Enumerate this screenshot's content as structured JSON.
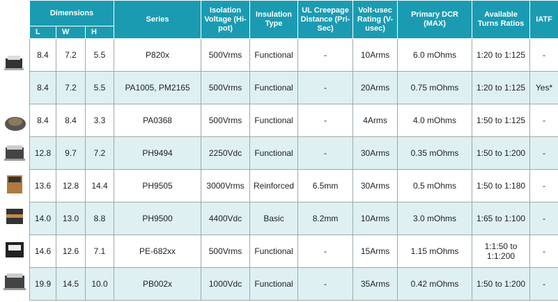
{
  "table": {
    "header": {
      "dimensions": "Dimensions",
      "dims": [
        "L",
        "W",
        "H"
      ],
      "columns": [
        "Series",
        "Isolation Voltage (Hi-pot)",
        "Insulation Type",
        "UL Creepage Distance (Pri-Sec)",
        "Volt-usec Rating (V-usec)",
        "Primary DCR (MAX)",
        "Available Turns Ratios",
        "IATF"
      ]
    },
    "rows": [
      [
        "8.4",
        "7.2",
        "5.5",
        "P820x",
        "500Vrms",
        "Functional",
        "-",
        "10Arms",
        "6.0 mOhms",
        "1:20 to 1:125",
        "-"
      ],
      [
        "8.4",
        "7.2",
        "5.5",
        "PA1005, PM2165",
        "500Vrms",
        "Functional",
        "-",
        "20Arms",
        "0.75 mOhms",
        "1:20 to 1:125",
        "Yes*"
      ],
      [
        "8.4",
        "8.4",
        "3.3",
        "PA0368",
        "500Vrms",
        "Functional",
        "-",
        "4Arms",
        "4.0 mOhms",
        "1:50 to 1:125",
        "-"
      ],
      [
        "12.8",
        "9.7",
        "7.2",
        "PH9494",
        "2250Vdc",
        "Functional",
        "-",
        "30Arms",
        "0.35 mOhms",
        "1:50 to 1:200",
        "-"
      ],
      [
        "13.6",
        "12.8",
        "14.4",
        "PH9505",
        "3000Vrms",
        "Reinforced",
        "6.5mm",
        "30Arms",
        "0.5 mOhms",
        "1:50 to 1:180",
        "-"
      ],
      [
        "14.0",
        "13.0",
        "8.8",
        "PH9500",
        "4400Vdc",
        "Basic",
        "8.2mm",
        "10Arms",
        "3.0 mOhms",
        "1:65 to 1:100",
        "-"
      ],
      [
        "14.6",
        "12.6",
        "7.1",
        "PE-682xx",
        "500Vrms",
        "Functional",
        "-",
        "15Arms",
        "1.15 mOhms",
        "1:1:50 to 1:1:200",
        "-"
      ],
      [
        "19.9",
        "14.5",
        "10.0",
        "PB002x",
        "1000Vdc",
        "Functional",
        "-",
        "35Arms",
        "0.42 mOhms",
        "1:50 to 1:200",
        "-"
      ]
    ]
  }
}
